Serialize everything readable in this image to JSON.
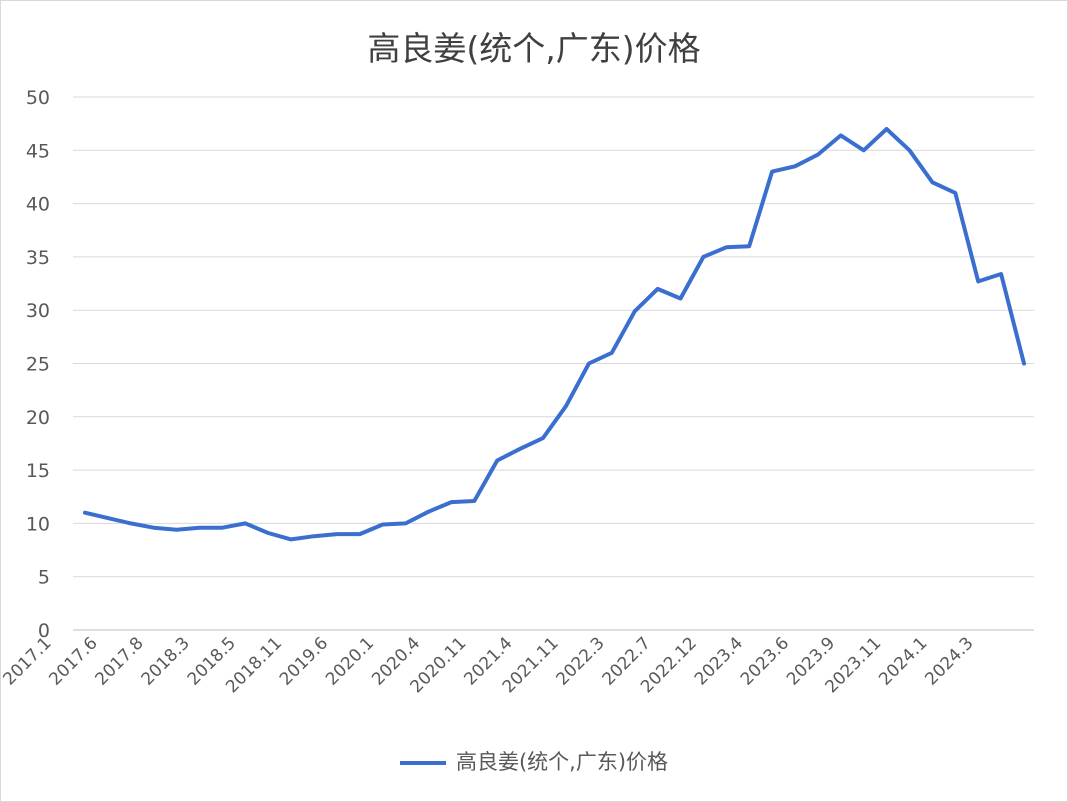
{
  "chart_data": {
    "type": "line",
    "title": "高良姜(统个,广东)价格",
    "xlabel": "",
    "ylabel": "",
    "ylim": [
      0,
      50
    ],
    "yticks": [
      0,
      5,
      10,
      15,
      20,
      25,
      30,
      35,
      40,
      45,
      50
    ],
    "grid": true,
    "legend_position": "bottom",
    "x_tick_labels": [
      "2017.1",
      "2017.6",
      "2017.8",
      "2018.3",
      "2018.5",
      "2018.11",
      "2019.6",
      "2020.1",
      "2020.4",
      "2020.11",
      "2021.4",
      "2021.11",
      "2022.3",
      "2022.7",
      "2022.12",
      "2023.4",
      "2023.6",
      "2023.9",
      "2023.11",
      "2024.1",
      "2024.3"
    ],
    "color": "#3a6fd0",
    "series": [
      {
        "name": "高良姜(统个,广东)价格",
        "values": [
          11,
          10.5,
          10,
          9.6,
          9.4,
          9.6,
          9.6,
          10,
          9.1,
          8.5,
          8.8,
          9,
          9,
          9.9,
          10,
          11.1,
          12,
          12.1,
          15.9,
          17,
          18,
          21,
          25,
          26,
          29.9,
          32,
          31.1,
          35,
          35.9,
          36,
          43,
          43.5,
          44.6,
          46.4,
          45,
          47,
          45,
          42,
          41,
          32.7,
          33.4,
          25
        ]
      }
    ]
  }
}
